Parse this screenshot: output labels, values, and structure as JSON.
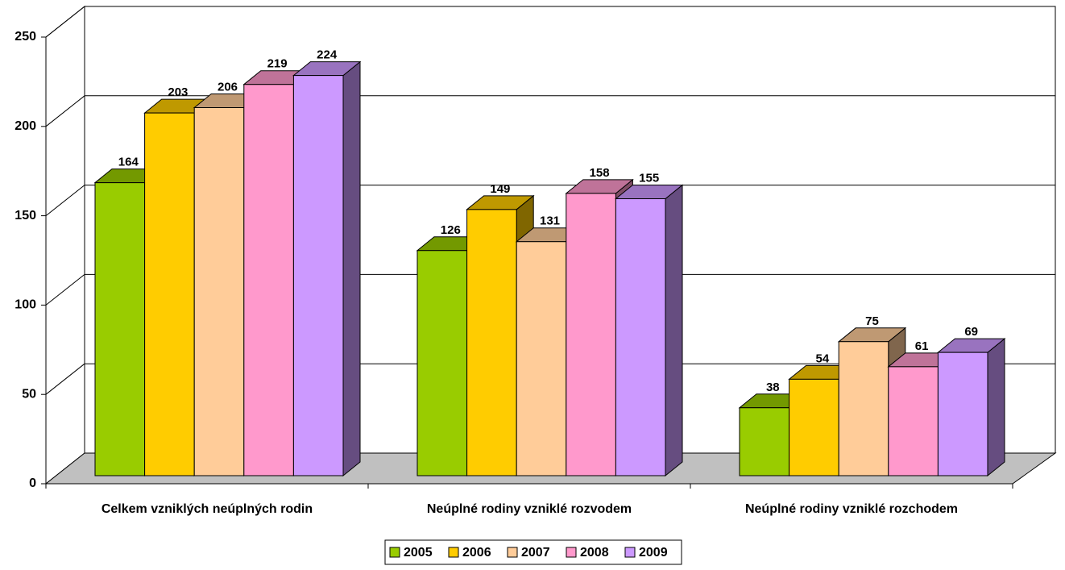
{
  "chart_data": {
    "type": "bar3d",
    "categories": [
      "Celkem vzniklých neúplných rodin",
      "Neúplné rodiny vzniklé rozvodem",
      "Neúplné rodiny vzniklé rozchodem"
    ],
    "series": [
      {
        "name": "2005",
        "color": "#99cc00",
        "values": [
          164,
          126,
          38
        ]
      },
      {
        "name": "2006",
        "color": "#ffcc00",
        "values": [
          203,
          149,
          54
        ]
      },
      {
        "name": "2007",
        "color": "#ffcc99",
        "values": [
          206,
          131,
          75
        ]
      },
      {
        "name": "2008",
        "color": "#ff99cc",
        "values": [
          219,
          158,
          61
        ]
      },
      {
        "name": "2009",
        "color": "#cc99ff",
        "values": [
          224,
          155,
          69
        ]
      }
    ],
    "ylim": [
      0,
      250
    ],
    "yticks": [
      0,
      50,
      100,
      150,
      200,
      250
    ],
    "grid": true,
    "legend": "bottom"
  }
}
